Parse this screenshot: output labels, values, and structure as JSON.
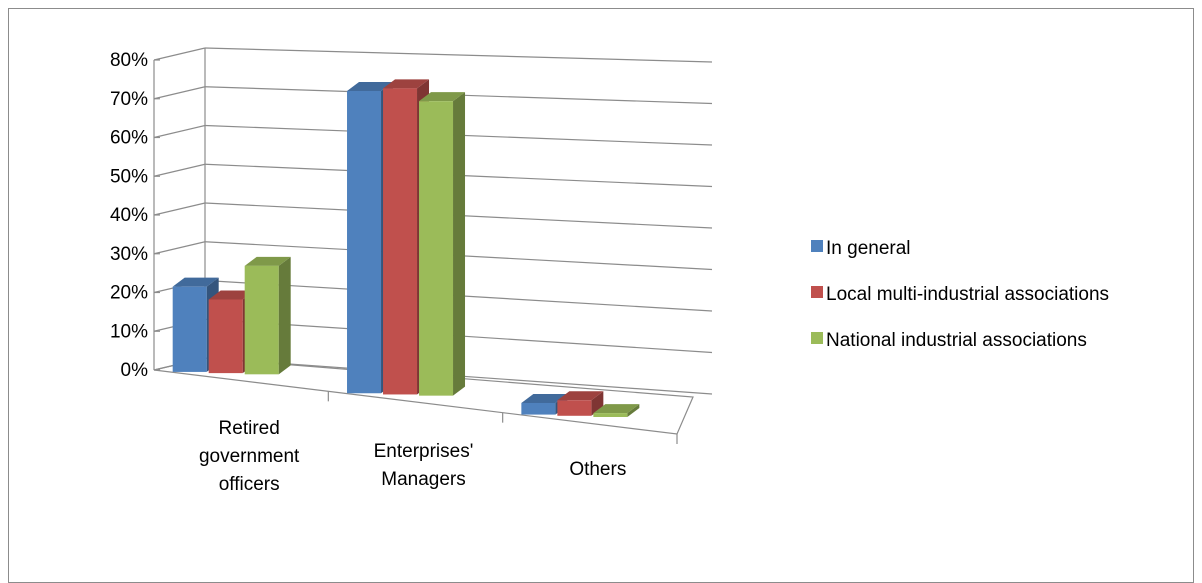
{
  "chart_data": {
    "type": "bar",
    "title": "",
    "xlabel": "",
    "ylabel": "",
    "ylim": [
      0,
      0.8
    ],
    "y_ticks": [
      "0%",
      "10%",
      "20%",
      "30%",
      "40%",
      "50%",
      "60%",
      "70%",
      "80%"
    ],
    "categories": [
      [
        "Retired",
        "government",
        "officers"
      ],
      [
        "Enterprises'",
        "Managers"
      ],
      [
        "Others"
      ]
    ],
    "series": [
      {
        "name": "In general",
        "color": "#4F81BD",
        "values": [
          0.22,
          0.78,
          0.03
        ]
      },
      {
        "name": "Local multi-industrial associations",
        "color": "#C0504D",
        "values": [
          0.19,
          0.79,
          0.04
        ]
      },
      {
        "name": "National industrial associations",
        "color": "#9BBB59",
        "values": [
          0.28,
          0.76,
          0.01
        ]
      }
    ],
    "grid": true,
    "legend_position": "right",
    "style": "3d-clustered-column"
  }
}
